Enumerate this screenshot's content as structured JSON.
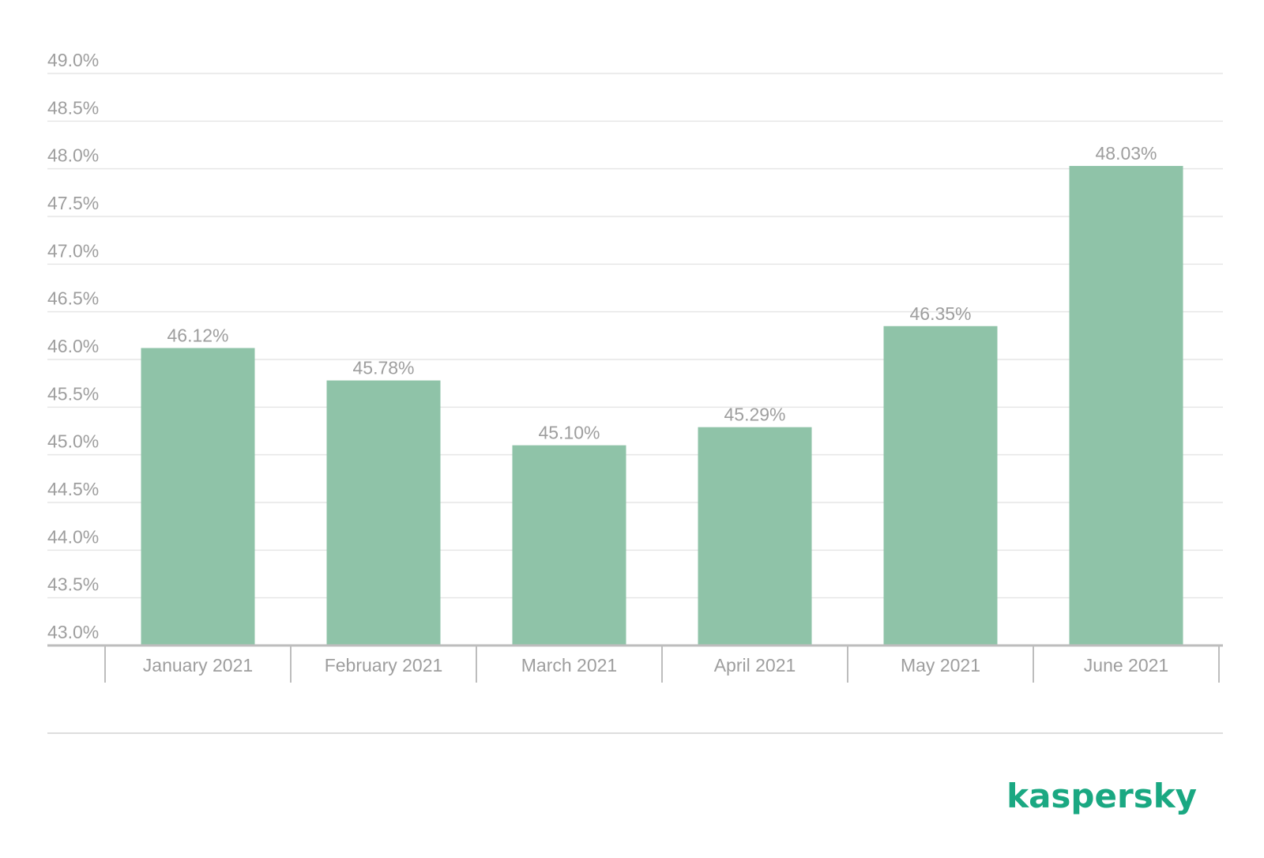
{
  "chart_data": {
    "type": "bar",
    "categories": [
      "January 2021",
      "February 2021",
      "March 2021",
      "April 2021",
      "May 2021",
      "June 2021"
    ],
    "values": [
      46.12,
      45.78,
      45.1,
      45.29,
      46.35,
      48.03
    ],
    "data_labels": [
      "46.12%",
      "45.78%",
      "45.10%",
      "45.29%",
      "46.35%",
      "48.03%"
    ],
    "yticks": [
      43.0,
      43.5,
      44.0,
      44.5,
      45.0,
      45.5,
      46.0,
      46.5,
      47.0,
      47.5,
      48.0,
      48.5,
      49.0
    ],
    "ytick_labels": [
      "43.0%",
      "43.5%",
      "44.0%",
      "44.5%",
      "45.0%",
      "45.5%",
      "46.0%",
      "46.5%",
      "47.0%",
      "47.5%",
      "48.0%",
      "48.5%",
      "49.0%"
    ],
    "ylim": [
      43.0,
      49.0
    ],
    "grid": true,
    "colors": {
      "bar": "#8fc3a8",
      "text": "#9e9e9e",
      "grid": "#e6e6e6",
      "axis": "#bdbdbd"
    }
  },
  "logo": {
    "text": "kaspersky",
    "color": "#1aa882"
  }
}
